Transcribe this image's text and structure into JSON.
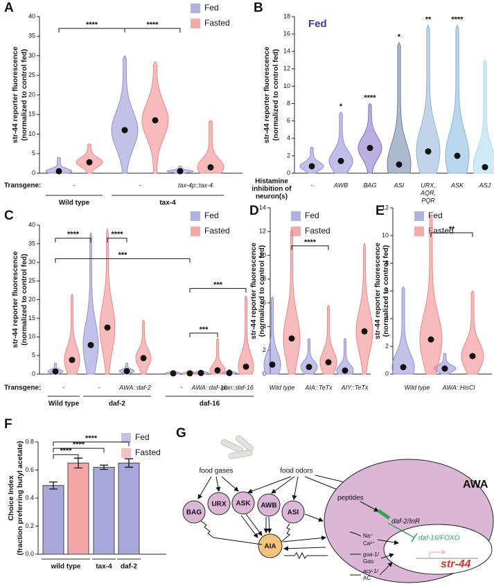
{
  "chart_data": [
    {
      "panel": "A",
      "type": "violin",
      "ylabel": [
        "str-44 reporter fluorescence",
        "(normalized to control fed)"
      ],
      "ylim": [
        0,
        40
      ],
      "yticks": [
        0,
        5,
        10,
        15,
        20,
        25,
        30,
        35,
        40
      ],
      "series": [
        {
          "name": "Fed",
          "color": "#8f8fd6",
          "values": [
            0.5,
            11,
            0.5
          ],
          "max": [
            4,
            30,
            1.8
          ]
        },
        {
          "name": "Fasted",
          "color": "#f08484",
          "values": [
            2.8,
            13.5,
            1.5
          ],
          "max": [
            7.5,
            28.5,
            13.5
          ]
        }
      ],
      "row_label": "Transgene:",
      "categories": [
        "-",
        "-",
        "tax-4p::tax-4"
      ],
      "genotypes": [
        "Wild type",
        "tax-4",
        null
      ],
      "significance": [
        "****",
        "****"
      ]
    },
    {
      "panel": "B",
      "type": "violin",
      "title": "Fed",
      "title_color": "#3b3ba8",
      "ylabel": [
        "str-44 reporter fluorescence",
        "(normalized to control fed)"
      ],
      "ylim": [
        0,
        18
      ],
      "yticks": [
        0,
        2,
        4,
        6,
        8,
        10,
        12,
        14,
        16,
        18
      ],
      "series": [
        {
          "colors": [
            "#8f8fd6",
            "#8a8ad8",
            "#7f6fc8",
            "#6a7fa8",
            "#8fb0d8",
            "#7fb5dc",
            "#a8d8f0"
          ],
          "values": [
            0.8,
            1.4,
            2.9,
            1.0,
            2.5,
            2.0,
            0.7
          ],
          "max": [
            3,
            7,
            8,
            15,
            17,
            17,
            13
          ]
        }
      ],
      "row_label": [
        "Histamine",
        "inhibition of",
        "neuron(s)"
      ],
      "categories": [
        "-",
        "AWB",
        "BAG",
        "ASI",
        [
          "URX,",
          "AQR,",
          "PQR"
        ],
        "ASK",
        "ASJ"
      ],
      "significance": [
        null,
        "*",
        "****",
        "*",
        "**",
        "****",
        null
      ]
    },
    {
      "panel": "C",
      "type": "violin",
      "ylabel": [
        "str-44 reporter fluorescence",
        "(normalized to control fed)"
      ],
      "ylim": [
        0,
        40
      ],
      "yticks": [
        0,
        5,
        10,
        15,
        20,
        25,
        30,
        35,
        40
      ],
      "series": [
        {
          "name": "Fed",
          "color": "#8f8fd6",
          "values": [
            0.7,
            7.8,
            0.8,
            0.2,
            0.3,
            0.3
          ],
          "max": [
            3,
            38,
            3,
            0.6,
            1,
            1.2
          ]
        },
        {
          "name": "Fasted",
          "color": "#f08484",
          "values": [
            3.8,
            12.5,
            4.3,
            0.2,
            1,
            2
          ],
          "max": [
            21.5,
            39,
            14.5,
            0.8,
            9.5,
            21
          ]
        }
      ],
      "row_label": "Transgene:",
      "categories": [
        "-",
        "-",
        "AWA::daf-2",
        "-",
        "AWA::daf-16",
        "pan::daf-16"
      ],
      "genotypes": [
        "Wild type",
        "daf-2",
        null,
        "daf-16",
        null,
        null
      ],
      "significance": [
        "****",
        "****",
        "***",
        "***",
        "***"
      ]
    },
    {
      "panel": "D",
      "type": "violin",
      "ylabel": [
        "str-44 reporter fluorescence",
        "(normalized to control fed)"
      ],
      "ylim": [
        0,
        14
      ],
      "yticks": [
        0,
        2,
        4,
        6,
        8,
        10,
        12,
        14
      ],
      "series": [
        {
          "name": "Fed",
          "color": "#8f8fd6",
          "values": [
            0.8,
            0.6,
            0.3
          ],
          "max": [
            6.5,
            3,
            3
          ]
        },
        {
          "name": "Fasted",
          "color": "#f08484",
          "values": [
            3,
            1,
            3.6
          ],
          "max": [
            12.2,
            5.8,
            11
          ]
        }
      ],
      "categories": [
        "Wild type",
        "AIA::TeTx",
        "AIY::TeTx"
      ],
      "significance": [
        "****"
      ]
    },
    {
      "panel": "E",
      "type": "violin",
      "ylabel": [
        "str-44 reporter fluorescence",
        "(normalized to control fed)"
      ],
      "ylim": [
        0,
        12
      ],
      "yticks": [
        0,
        2,
        4,
        6,
        8,
        10,
        12
      ],
      "series": [
        {
          "name": "Fed",
          "color": "#8f8fd6",
          "values": [
            0.5,
            0.4
          ],
          "max": [
            6.3,
            1.5
          ]
        },
        {
          "name": "Fasted",
          "color": "#f08484",
          "values": [
            2.5,
            1.3
          ],
          "max": [
            11.5,
            6
          ]
        }
      ],
      "categories": [
        "Wild type",
        "AWA::HisCl"
      ],
      "significance": [
        "**"
      ]
    },
    {
      "panel": "F",
      "type": "bar",
      "ylabel": [
        "Choice Index",
        "(fraction preferring butyl acetate)"
      ],
      "ylim": [
        0,
        0.8
      ],
      "yticks": [
        {
          "value": 0,
          "label": "0.0"
        },
        0.2,
        0.4,
        0.6,
        0.8
      ],
      "series": [
        {
          "name": "Fed",
          "color": "#a8a8dc",
          "values": [
            0.49,
            null,
            0.62,
            0.65
          ],
          "errors": [
            0.025,
            null,
            0.015,
            0.03
          ]
        },
        {
          "name": "Fasted",
          "color": "#f4a7a7",
          "values": [
            null,
            0.65,
            null,
            null
          ],
          "errors": [
            null,
            0.035,
            null,
            null
          ]
        }
      ],
      "categories": [
        "wild type",
        null,
        "tax-4",
        "daf-2"
      ],
      "significance": [
        "****",
        "****",
        "****"
      ]
    }
  ],
  "diagram": {
    "panel": "G",
    "food_gases": "food gases",
    "food_odors": "food odors",
    "peptides": "peptides",
    "neurons": [
      "BAG",
      "URX",
      "ASK",
      "AWB",
      "ASI"
    ],
    "interneuron": "AIA",
    "sensory_neuron": "AWA",
    "receptor": "daf-2/InR",
    "factor": "daf-16/FOXO",
    "gene": "str-44",
    "signals": [
      "Na⁺",
      "Ca²⁺",
      "goa-1/",
      "Gαo",
      "acy-1/",
      "AC"
    ]
  }
}
